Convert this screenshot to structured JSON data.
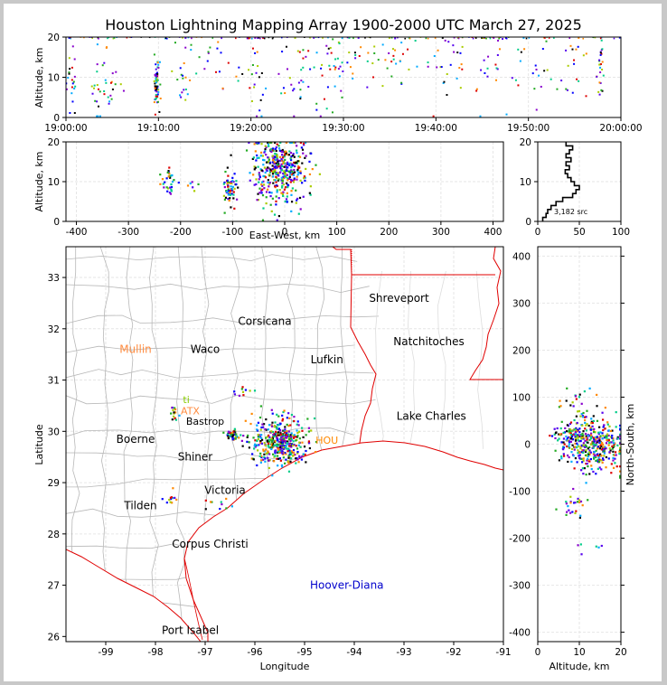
{
  "title": "Houston Lightning Mapping Array 1900-2000 UTC March 27, 2025",
  "colors": {
    "frame": "#c8c8c8",
    "state_border": "#e00000",
    "county_border": "#b8b8b8",
    "coast": "#e00000",
    "grid": "#e6e6e6",
    "source_palette": [
      "#0000ff",
      "#5500ee",
      "#8800cc",
      "#00aaff",
      "#00cc88",
      "#22aa22",
      "#aacc00",
      "#ff8800",
      "#dd0000",
      "#000000"
    ]
  },
  "chart_data": [
    {
      "id": "time_altitude",
      "type": "scatter",
      "ylabel": "Altitude, km",
      "ylim": [
        0,
        20
      ],
      "yticks": [
        "0",
        "10",
        "20"
      ],
      "xlim_minutes": [
        0,
        60
      ],
      "xticks": [
        "19:00:00",
        "19:10:00",
        "19:20:00",
        "19:30:00",
        "19:40:00",
        "19:50:00",
        "20:00:00"
      ],
      "clusters": [
        {
          "t": 0.5,
          "alt": 10,
          "st": 0.4,
          "sa": 5,
          "n": 25
        },
        {
          "t": 3.5,
          "alt": 10,
          "st": 0.6,
          "sa": 5,
          "n": 22
        },
        {
          "t": 5,
          "alt": 6,
          "st": 0.5,
          "sa": 3,
          "n": 15
        },
        {
          "t": 9.8,
          "alt": 8,
          "st": 0.15,
          "sa": 3,
          "n": 60
        },
        {
          "t": 12.5,
          "alt": 10,
          "st": 0.6,
          "sa": 4,
          "n": 18
        },
        {
          "t": 16,
          "alt": 14,
          "st": 1.2,
          "sa": 4,
          "n": 20
        },
        {
          "t": 20.5,
          "alt": 12,
          "st": 0.8,
          "sa": 5,
          "n": 25
        },
        {
          "t": 25,
          "alt": 11,
          "st": 1.2,
          "sa": 6,
          "n": 30
        },
        {
          "t": 28,
          "alt": 12,
          "st": 1.2,
          "sa": 6,
          "n": 30
        },
        {
          "t": 31,
          "alt": 12,
          "st": 1.2,
          "sa": 6,
          "n": 25
        },
        {
          "t": 35.5,
          "alt": 14,
          "st": 1.4,
          "sa": 4,
          "n": 25
        },
        {
          "t": 41,
          "alt": 13,
          "st": 1.2,
          "sa": 5,
          "n": 25
        },
        {
          "t": 45.5,
          "alt": 14,
          "st": 1.2,
          "sa": 5,
          "n": 20
        },
        {
          "t": 50,
          "alt": 13,
          "st": 1.5,
          "sa": 5,
          "n": 20
        },
        {
          "t": 55,
          "alt": 12,
          "st": 1.2,
          "sa": 5,
          "n": 20
        },
        {
          "t": 57.8,
          "alt": 12,
          "st": 0.2,
          "sa": 3,
          "n": 25
        }
      ],
      "top_band": {
        "alt": 19.6,
        "n": 120
      }
    },
    {
      "id": "ew_altitude",
      "type": "scatter",
      "xlabel": "East-West, km",
      "ylabel": "Altitude, km",
      "xlim": [
        -420,
        420
      ],
      "ylim": [
        0,
        20
      ],
      "xticks": [
        "-400",
        "-300",
        "-200",
        "-100",
        "0",
        "100",
        "200",
        "300",
        "400"
      ],
      "yticks": [
        "0",
        "10",
        "20"
      ],
      "clusters": [
        {
          "x": -10,
          "alt": 13,
          "sx": 28,
          "sa": 4,
          "n": 420
        },
        {
          "x": -105,
          "alt": 8,
          "sx": 8,
          "sa": 2,
          "n": 60
        },
        {
          "x": -220,
          "alt": 10,
          "sx": 8,
          "sa": 2,
          "n": 30
        },
        {
          "x": -175,
          "alt": 9,
          "sx": 8,
          "sa": 1,
          "n": 6
        }
      ]
    },
    {
      "id": "altitude_histogram",
      "type": "line",
      "xlim": [
        0,
        100
      ],
      "ylim": [
        0,
        20
      ],
      "xticks": [
        "0",
        "50",
        "100"
      ],
      "yticks": [
        "0",
        "10",
        "20"
      ],
      "annotation": "3,182 src",
      "profile": [
        {
          "alt": 0.5,
          "v": 6
        },
        {
          "alt": 1.5,
          "v": 10
        },
        {
          "alt": 2.5,
          "v": 12
        },
        {
          "alt": 3.5,
          "v": 16
        },
        {
          "alt": 4.5,
          "v": 22
        },
        {
          "alt": 5.5,
          "v": 30
        },
        {
          "alt": 6.5,
          "v": 42
        },
        {
          "alt": 7.5,
          "v": 46
        },
        {
          "alt": 8.5,
          "v": 50
        },
        {
          "alt": 9.5,
          "v": 44
        },
        {
          "alt": 10.5,
          "v": 40
        },
        {
          "alt": 11.5,
          "v": 36
        },
        {
          "alt": 12.5,
          "v": 33
        },
        {
          "alt": 13.5,
          "v": 38
        },
        {
          "alt": 14.5,
          "v": 34
        },
        {
          "alt": 15.5,
          "v": 40
        },
        {
          "alt": 16.5,
          "v": 34
        },
        {
          "alt": 17.5,
          "v": 38
        },
        {
          "alt": 18.5,
          "v": 42
        },
        {
          "alt": 19.5,
          "v": 34
        }
      ]
    },
    {
      "id": "plan_view_map",
      "type": "scatter",
      "xlabel": "Longitude",
      "ylabel": "Latitude",
      "xlim": [
        -99.8,
        -91
      ],
      "ylim": [
        25.9,
        33.6
      ],
      "xticks": [
        "-99",
        "-98",
        "-97",
        "-96",
        "-95",
        "-94",
        "-93",
        "-92",
        "-91"
      ],
      "yticks": [
        "26",
        "27",
        "28",
        "29",
        "30",
        "31",
        "32",
        "33"
      ],
      "cities": [
        {
          "name": "Shreveport",
          "lon": -93.1,
          "lat": 32.6,
          "color": "#000000"
        },
        {
          "name": "Corsicana",
          "lon": -95.8,
          "lat": 32.15,
          "color": "#000000"
        },
        {
          "name": "Mullin",
          "lon": -98.4,
          "lat": 31.6,
          "color": "#ff8c40"
        },
        {
          "name": "Waco",
          "lon": -97.0,
          "lat": 31.6,
          "color": "#000000"
        },
        {
          "name": "Natchitoches",
          "lon": -92.5,
          "lat": 31.75,
          "color": "#000000"
        },
        {
          "name": "Lufkin",
          "lon": -94.55,
          "lat": 31.4,
          "color": "#000000"
        },
        {
          "name": "Lake Charles",
          "lon": -92.45,
          "lat": 30.3,
          "color": "#000000"
        },
        {
          "name": "Boerne",
          "lon": -98.4,
          "lat": 29.85,
          "color": "#000000"
        },
        {
          "name": "Shiner",
          "lon": -97.2,
          "lat": 29.5,
          "color": "#000000"
        },
        {
          "name": "Victoria",
          "lon": -96.6,
          "lat": 28.85,
          "color": "#000000"
        },
        {
          "name": "Tilden",
          "lon": -98.3,
          "lat": 28.55,
          "color": "#000000"
        },
        {
          "name": "Corpus Christi",
          "lon": -96.9,
          "lat": 27.8,
          "color": "#000000"
        },
        {
          "name": "Hoover-Diana",
          "lon": -94.15,
          "lat": 27.0,
          "color": "#0000cc"
        },
        {
          "name": "Port Isabel",
          "lon": -97.3,
          "lat": 26.12,
          "color": "#000000"
        }
      ],
      "partial_labels": [
        {
          "text": "Bastrop",
          "lon": -97.0,
          "lat": 30.2,
          "color": "#000000"
        },
        {
          "text": "ATX",
          "lon": -97.3,
          "lat": 30.4,
          "color": "#ff8c40"
        },
        {
          "text": "ti",
          "lon": -97.38,
          "lat": 30.62,
          "color": "#88cc00"
        },
        {
          "text": "HOU",
          "lon": -94.55,
          "lat": 29.83,
          "color": "#ff8800"
        }
      ],
      "clusters": [
        {
          "lon": -95.5,
          "lat": 29.8,
          "slon": 0.28,
          "slat": 0.22,
          "n": 420
        },
        {
          "lon": -96.45,
          "lat": 29.93,
          "slon": 0.06,
          "slat": 0.05,
          "n": 50
        },
        {
          "lon": -97.6,
          "lat": 30.35,
          "slon": 0.06,
          "slat": 0.06,
          "n": 15
        },
        {
          "lon": -96.3,
          "lat": 30.75,
          "slon": 0.2,
          "slat": 0.06,
          "n": 10
        },
        {
          "lon": -96.7,
          "lat": 28.6,
          "slon": 0.15,
          "slat": 0.1,
          "n": 10
        },
        {
          "lon": -97.7,
          "lat": 28.7,
          "slon": 0.06,
          "slat": 0.05,
          "n": 12
        }
      ]
    },
    {
      "id": "altitude_ns",
      "type": "scatter",
      "xlabel": "Altitude, km",
      "ylabel": "North-South, km",
      "xlim": [
        0,
        20
      ],
      "ylim": [
        -420,
        420
      ],
      "xticks": [
        "0",
        "10",
        "20"
      ],
      "yticks": [
        "-400",
        "-300",
        "-200",
        "-100",
        "0",
        "100",
        "200",
        "300",
        "400"
      ],
      "clusters": [
        {
          "alt": 13,
          "y": 0,
          "sa": 4,
          "sy": 28,
          "n": 400
        },
        {
          "alt": 8,
          "y": 20,
          "sa": 2,
          "sy": 8,
          "n": 50
        },
        {
          "alt": 9,
          "y": -120,
          "sa": 1.5,
          "sy": 5,
          "n": 15
        },
        {
          "alt": 8,
          "y": -145,
          "sa": 1.5,
          "sy": 5,
          "n": 10
        },
        {
          "alt": 10,
          "y": 80,
          "sa": 3,
          "sy": 20,
          "n": 25
        },
        {
          "alt": 12,
          "y": -220,
          "sa": 2,
          "sy": 8,
          "n": 6
        }
      ]
    }
  ]
}
